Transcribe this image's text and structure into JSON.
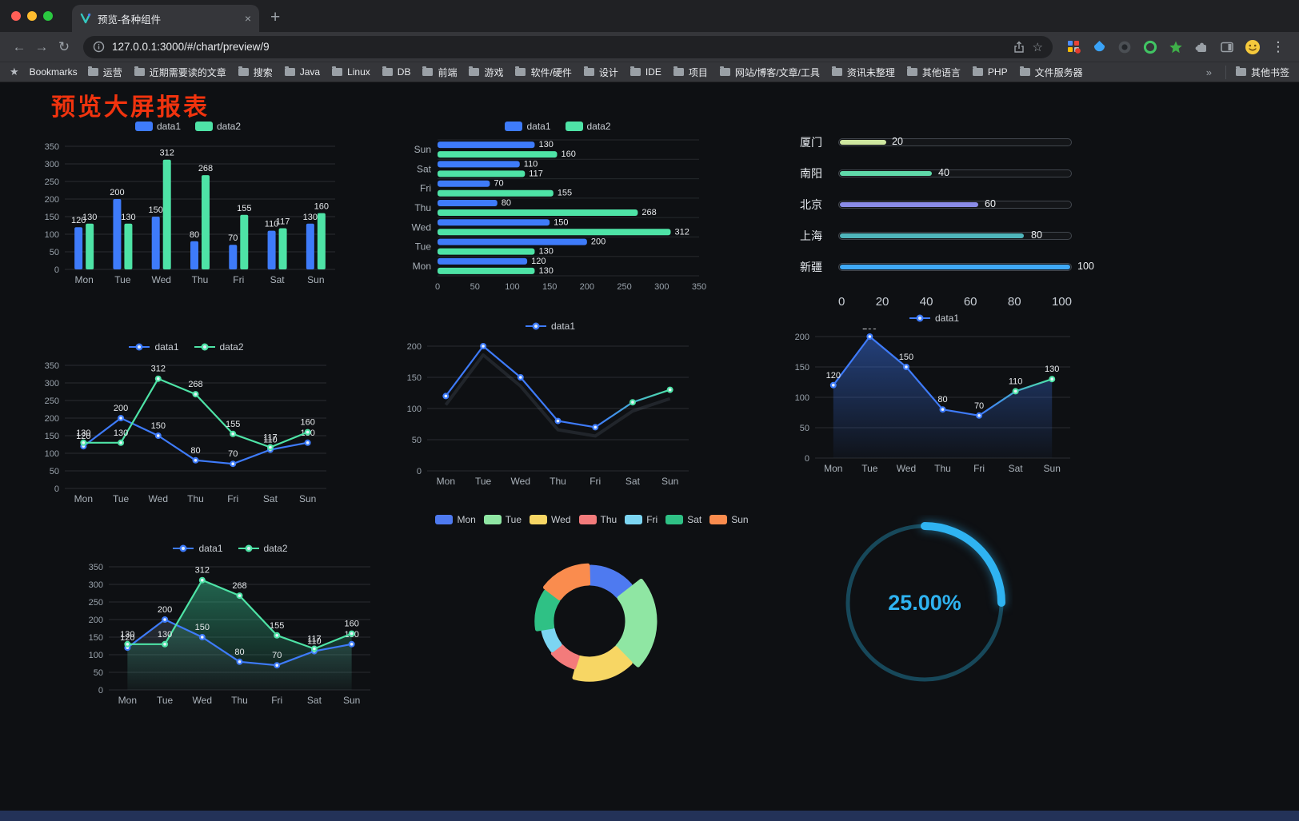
{
  "glyphs": {
    "back": "←",
    "forward": "→",
    "reload": "↻",
    "close": "×",
    "plus": "+",
    "menu": "⋮",
    "star_outline": "☆",
    "star_filled": "★",
    "overflow": "»"
  },
  "browser": {
    "tab": {
      "title": "预览-各种组件"
    },
    "toolbar": {
      "url": "127.0.0.1:3000/#/chart/preview/9"
    },
    "bookmarks_bar": {
      "label": "Bookmarks",
      "folders": [
        "运营",
        "近期需要读的文章",
        "搜索",
        "Java",
        "Linux",
        "DB",
        "前端",
        "游戏",
        "软件/硬件",
        "设计",
        "IDE",
        "项目",
        "网站/博客/文章/工具",
        "资讯未整理",
        "其他语言",
        "PHP",
        "文件服务器"
      ],
      "other_bookmarks": "其他书签"
    }
  },
  "page": {
    "title": "预览大屏报表",
    "title_color": "#f1330e",
    "background": "#0e1013"
  },
  "palette": {
    "data1": "#3e7bfa",
    "data2": "#4ee3a6"
  },
  "chart_data": [
    {
      "id": "bar-grouped",
      "type": "bar",
      "legend_position": "top",
      "categories": [
        "Mon",
        "Tue",
        "Wed",
        "Thu",
        "Fri",
        "Sat",
        "Sun"
      ],
      "series": [
        {
          "name": "data1",
          "color": "#3e7bfa",
          "values": [
            120,
            200,
            150,
            80,
            70,
            110,
            130
          ],
          "point_labels": true
        },
        {
          "name": "data2",
          "color": "#4ee3a6",
          "values": [
            130,
            130,
            312,
            268,
            155,
            117,
            160
          ],
          "point_labels": true
        }
      ],
      "ylim": [
        0,
        350
      ],
      "ytick_step": 50,
      "grid": true
    },
    {
      "id": "bar-horizontal",
      "type": "bar",
      "orientation": "horizontal",
      "legend_position": "top",
      "categories": [
        "Mon",
        "Tue",
        "Wed",
        "Thu",
        "Fri",
        "Sat",
        "Sun"
      ],
      "series": [
        {
          "name": "data1",
          "color": "#3e7bfa",
          "values": [
            120,
            200,
            150,
            80,
            70,
            110,
            130
          ],
          "point_labels": true
        },
        {
          "name": "data2",
          "color": "#4ee3a6",
          "values": [
            130,
            130,
            312,
            268,
            155,
            117,
            160
          ],
          "point_labels": true
        }
      ],
      "xlim": [
        0,
        350
      ],
      "xtick_step": 50,
      "grid": true
    },
    {
      "id": "progress-bars",
      "type": "bar",
      "orientation": "horizontal",
      "categories": [
        "厦门",
        "南阳",
        "北京",
        "上海",
        "新疆"
      ],
      "values": [
        20,
        40,
        60,
        80,
        100
      ],
      "colors": [
        "#cfe7a0",
        "#5fd9a9",
        "#8a8ce8",
        "#4fb5bb",
        "#3fa9f5"
      ],
      "xlim": [
        0,
        100
      ],
      "xticks": [
        0,
        20,
        40,
        60,
        80,
        100
      ]
    },
    {
      "id": "line-two-series",
      "type": "line",
      "legend_position": "top",
      "categories": [
        "Mon",
        "Tue",
        "Wed",
        "Thu",
        "Fri",
        "Sat",
        "Sun"
      ],
      "series": [
        {
          "name": "data1",
          "color": "#3e7bfa",
          "values": [
            120,
            200,
            150,
            80,
            70,
            110,
            130
          ],
          "point_labels": true
        },
        {
          "name": "data2",
          "color": "#4ee3a6",
          "values": [
            130,
            130,
            312,
            268,
            155,
            117,
            160
          ],
          "point_labels": true
        }
      ],
      "ylim": [
        0,
        350
      ],
      "ytick_step": 50,
      "grid": true
    },
    {
      "id": "line-gradient",
      "type": "line",
      "legend_position": "top",
      "categories": [
        "Mon",
        "Tue",
        "Wed",
        "Thu",
        "Fri",
        "Sat",
        "Sun"
      ],
      "series": [
        {
          "name": "data1",
          "color": "#3e7bfa",
          "gradient_to": "#4ee3a6",
          "values": [
            120,
            200,
            150,
            80,
            70,
            110,
            130
          ],
          "point_labels": false,
          "shadow_echo": true
        }
      ],
      "ylim": [
        0,
        200
      ],
      "ytick_step": 50,
      "grid": true
    },
    {
      "id": "area-gradient",
      "type": "area",
      "legend_position": "top",
      "categories": [
        "Mon",
        "Tue",
        "Wed",
        "Thu",
        "Fri",
        "Sat",
        "Sun"
      ],
      "series": [
        {
          "name": "data1",
          "color": "#3e7bfa",
          "gradient_to": "#4ee3a6",
          "area_color": "#3e7bfa",
          "area_opacity": 0.45,
          "values": [
            120,
            200,
            150,
            80,
            70,
            110,
            130
          ],
          "point_labels": true
        }
      ],
      "ylim": [
        0,
        200
      ],
      "ytick_step": 50,
      "grid": true
    },
    {
      "id": "area-two-series",
      "type": "area",
      "legend_position": "top",
      "categories": [
        "Mon",
        "Tue",
        "Wed",
        "Thu",
        "Fri",
        "Sat",
        "Sun"
      ],
      "series": [
        {
          "name": "data1",
          "color": "#3e7bfa",
          "area_color": "#7f93ad",
          "area_opacity": 0.22,
          "values": [
            120,
            200,
            150,
            80,
            70,
            110,
            130
          ],
          "point_labels": true
        },
        {
          "name": "data2",
          "color": "#4ee3a6",
          "area_color": "#35b98a",
          "area_opacity": 0.5,
          "values": [
            130,
            130,
            312,
            268,
            155,
            117,
            160
          ],
          "point_labels": true
        }
      ],
      "ylim": [
        0,
        350
      ],
      "ytick_step": 50,
      "grid": true
    },
    {
      "id": "pie-rose",
      "type": "pie",
      "donut": true,
      "rose": true,
      "legend_position": "top",
      "categories": [
        "Mon",
        "Tue",
        "Wed",
        "Thu",
        "Fri",
        "Sat",
        "Sun"
      ],
      "values": [
        120,
        200,
        150,
        80,
        70,
        110,
        130
      ],
      "colors": [
        "#4e7af0",
        "#8fe6a3",
        "#f7d664",
        "#f37b7b",
        "#7cd5f2",
        "#2fc185",
        "#fa8c4e"
      ]
    },
    {
      "id": "gauge",
      "type": "gauge",
      "value": 25,
      "label": "25.00%",
      "color": "#2fb3f1",
      "track_color": "#17485a"
    }
  ]
}
